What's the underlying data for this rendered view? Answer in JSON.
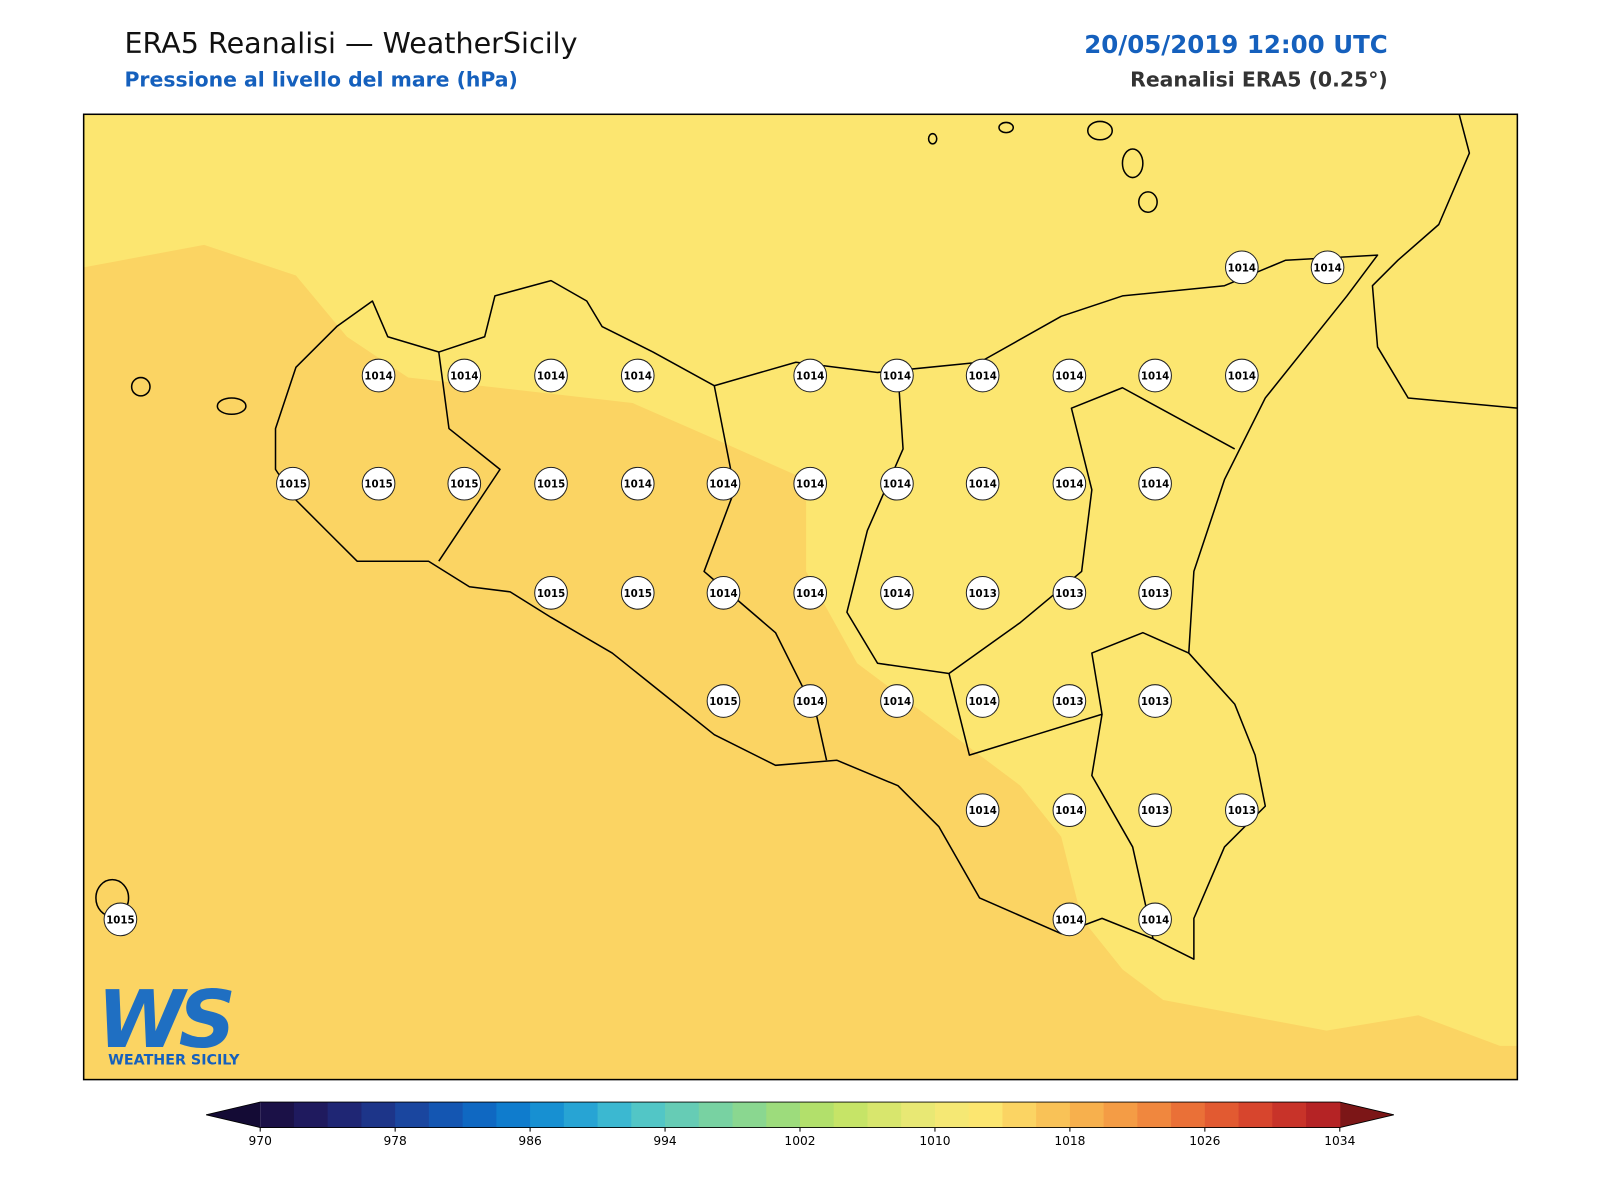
{
  "header": {
    "title": "ERA5 Reanalisi — WeatherSicily",
    "subtitle": "Pressione al livello del mare (hPa)",
    "datetime": "20/05/2019 12:00 UTC",
    "source": "Reanalisi ERA5 (0.25°)"
  },
  "stations": [
    1014,
    1014,
    1014,
    1014,
    1014,
    1014,
    1014,
    1014,
    1014,
    1014,
    1014,
    1014,
    1015,
    1015,
    1015,
    1015,
    1014,
    1014,
    1014,
    1014,
    1014,
    1014,
    1014,
    1015,
    1015,
    1014,
    1014,
    1014,
    1013,
    1013,
    1013,
    1015,
    1014,
    1014,
    1014,
    1013,
    1013,
    1014,
    1014,
    1013,
    1013,
    1015,
    1014,
    1014
  ],
  "colorbar": {
    "lim": [
      970,
      1034
    ],
    "ticks": [
      970,
      978,
      986,
      994,
      1002,
      1010,
      1018,
      1026,
      1034
    ],
    "colors": [
      "#1b1147",
      "#1f1a5e",
      "#1f2674",
      "#1d3589",
      "#1a469f",
      "#1456b2",
      "#0f68c2",
      "#0f7ccd",
      "#1790d2",
      "#27a4d4",
      "#3bb8d1",
      "#52c6c6",
      "#66ccb5",
      "#78d2a2",
      "#8ad790",
      "#9ddc7c",
      "#b2e06b",
      "#c6e467",
      "#d8e66d",
      "#e8e874",
      "#f5e874",
      "#fce670",
      "#fbd463",
      "#f9c257",
      "#f7b04d",
      "#f49c45",
      "#f0873e",
      "#ea7037",
      "#e25a31",
      "#d7452d",
      "#c83329",
      "#b52325"
    ],
    "extend_colors": [
      "#140b35",
      "#7c1617"
    ]
  },
  "logo": {
    "text": "WS",
    "subtext": "WEATHER SICILY"
  }
}
